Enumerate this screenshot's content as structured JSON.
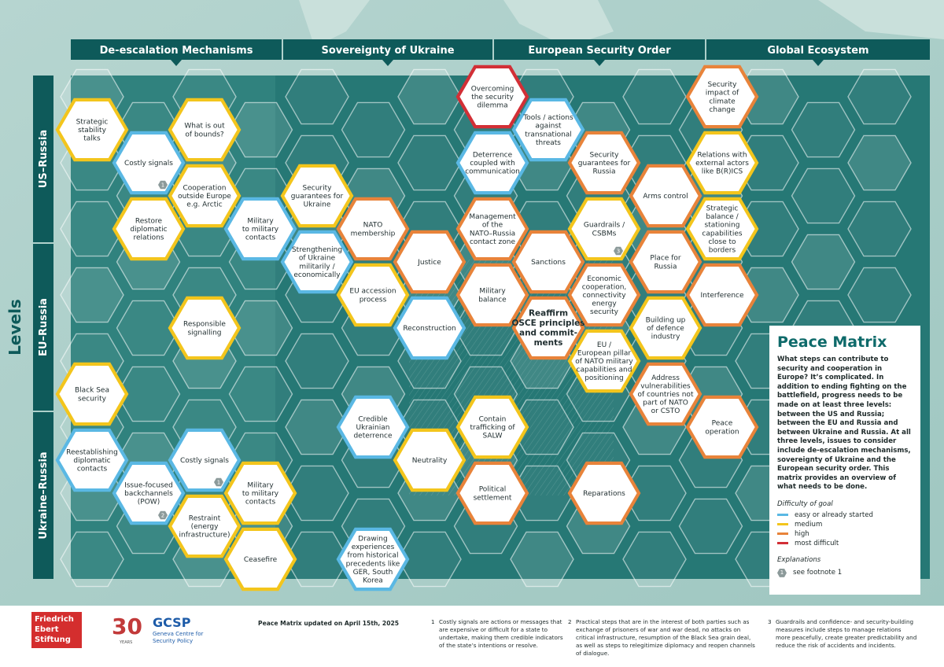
{
  "columns": [
    "De-escalation Mechanisms",
    "Sovereignty of Ukraine",
    "European Security Order",
    "Global Ecosystem"
  ],
  "levels_label": "Levels",
  "rows": [
    "US–Russia",
    "EU–Russia",
    "Ukraine–Russia"
  ],
  "difficulty_colors": {
    "easy": "#5ab8e4",
    "medium": "#f3c51c",
    "high": "#e8833a",
    "most_difficult": "#d22f36"
  },
  "hexes": [
    {
      "text": [
        "Strategic",
        "stability",
        "talks"
      ],
      "difficulty": "medium"
    },
    {
      "text": [
        "What is out",
        "of bounds?"
      ],
      "difficulty": "medium"
    },
    {
      "text": [
        "Costly signals"
      ],
      "difficulty": "easy",
      "footnote": "1"
    },
    {
      "text": [
        "Cooperation",
        "outside Europe",
        "e.g. Arctic"
      ],
      "difficulty": "medium"
    },
    {
      "text": [
        "Restore",
        "diplomatic",
        "relations"
      ],
      "difficulty": "medium"
    },
    {
      "text": [
        "Military",
        "to military",
        "contacts"
      ],
      "difficulty": "easy"
    },
    {
      "text": [
        "Responsible",
        "signalling"
      ],
      "difficulty": "medium"
    },
    {
      "text": [
        "Black Sea",
        "security"
      ],
      "difficulty": "medium"
    },
    {
      "text": [
        "Reestablishing",
        "diplomatic",
        "contacts"
      ],
      "difficulty": "easy"
    },
    {
      "text": [
        "Costly signals"
      ],
      "difficulty": "easy",
      "footnote": "1"
    },
    {
      "text": [
        "Issue-focused",
        "backchannels",
        "(POW)"
      ],
      "difficulty": "easy",
      "footnote": "2"
    },
    {
      "text": [
        "Military",
        "to military",
        "contacts"
      ],
      "difficulty": "medium"
    },
    {
      "text": [
        "Restraint",
        "(energy",
        "infrastructure)"
      ],
      "difficulty": "medium"
    },
    {
      "text": [
        "Ceasefire"
      ],
      "difficulty": "medium"
    },
    {
      "text": [
        "Security",
        "guarantees for",
        "Ukraine"
      ],
      "difficulty": "medium"
    },
    {
      "text": [
        "Strengthening",
        "of Ukraine",
        "militarily /",
        "economically"
      ],
      "difficulty": "easy"
    },
    {
      "text": [
        "NATO",
        "membership"
      ],
      "difficulty": "high"
    },
    {
      "text": [
        "EU accession",
        "process"
      ],
      "difficulty": "medium"
    },
    {
      "text": [
        "Justice"
      ],
      "difficulty": "high"
    },
    {
      "text": [
        "Reconstruction"
      ],
      "difficulty": "easy"
    },
    {
      "text": [
        "Credible",
        "Ukrainian",
        "deterrence"
      ],
      "difficulty": "easy"
    },
    {
      "text": [
        "Neutrality"
      ],
      "difficulty": "medium"
    },
    {
      "text": [
        "Drawing",
        "experiences",
        "from historical",
        "precedents like",
        "GER, South",
        "Korea"
      ],
      "difficulty": "easy"
    },
    {
      "text": [
        "Overcoming",
        "the security",
        "dilemma"
      ],
      "difficulty": "most_difficult"
    },
    {
      "text": [
        "Tools / actions",
        "against",
        "transnational",
        "threats"
      ],
      "difficulty": "easy"
    },
    {
      "text": [
        "Deterrence",
        "coupled with",
        "communication"
      ],
      "difficulty": "easy"
    },
    {
      "text": [
        "Management",
        "of the",
        "NATO–Russia",
        "contact zone"
      ],
      "difficulty": "high"
    },
    {
      "text": [
        "Sanctions"
      ],
      "difficulty": "high"
    },
    {
      "text": [
        "Military",
        "balance"
      ],
      "difficulty": "high"
    },
    {
      "text": [
        "Reaffirm",
        "OSCE principles",
        "and commit-",
        "ments"
      ],
      "difficulty": "high",
      "bold": true
    },
    {
      "text": [
        "Contain",
        "trafficking of",
        "SALW"
      ],
      "difficulty": "medium"
    },
    {
      "text": [
        "Political",
        "settlement"
      ],
      "difficulty": "high"
    },
    {
      "text": [
        "Security",
        "guarantees for",
        "Russia"
      ],
      "difficulty": "high"
    },
    {
      "text": [
        "Arms control"
      ],
      "difficulty": "high"
    },
    {
      "text": [
        "Guardrails /",
        "CSBMs"
      ],
      "difficulty": "medium",
      "footnote": "3"
    },
    {
      "text": [
        "Place for",
        "Russia"
      ],
      "difficulty": "high"
    },
    {
      "text": [
        "Economic",
        "cooperation,",
        "connectivity",
        "energy",
        "security"
      ],
      "difficulty": "high"
    },
    {
      "text": [
        "Building up",
        "of defence",
        "industry"
      ],
      "difficulty": "medium"
    },
    {
      "text": [
        "EU /",
        "European pillar",
        "of NATO military",
        "capabilities and",
        "positioning"
      ],
      "difficulty": "medium"
    },
    {
      "text": [
        "Address",
        "vulnerabilities",
        "of countries not",
        "part of NATO",
        "or CSTO"
      ],
      "difficulty": "high"
    },
    {
      "text": [
        "Reparations"
      ],
      "difficulty": "high"
    },
    {
      "text": [
        "Security",
        "impact of",
        "climate",
        "change"
      ],
      "difficulty": "high"
    },
    {
      "text": [
        "Relations with",
        "external actors",
        "like B(R)ICS"
      ],
      "difficulty": "medium"
    },
    {
      "text": [
        "Strategic",
        "balance /",
        "stationing",
        "capabilities",
        "close to",
        "borders"
      ],
      "difficulty": "medium"
    },
    {
      "text": [
        "Interference"
      ],
      "difficulty": "high"
    },
    {
      "text": [
        "Peace",
        "operation"
      ],
      "difficulty": "high"
    }
  ],
  "info": {
    "title": "Peace Matrix",
    "text": "What steps can contribute to security and cooperation in Europe? It’s complicated. In addition to ending fighting on the battlefield, progress needs to be made on at least three levels: between the US and Russia; between the EU and Russia and between Ukraine and Russia. At all three levels, issues to consider include de-escalation mechanisms, sovereignty of Ukraine and the European security order. This matrix provides an overview of what needs to be done.",
    "legend_title": "Difficulty of goal",
    "legend": [
      {
        "label": "easy or already started",
        "difficulty": "easy"
      },
      {
        "label": "medium",
        "difficulty": "medium"
      },
      {
        "label": "high",
        "difficulty": "high"
      },
      {
        "label": "most difficult",
        "difficulty": "most_difficult"
      }
    ],
    "explanations_title": "Explanations",
    "explanation_badge": "1",
    "explanation_text": "see footnote 1"
  },
  "footer": {
    "fes_logo": "Friedrich Ebert Stiftung",
    "gcsp_number": "30",
    "gcsp_years": "YEARS",
    "gcsp_name": "GCSP",
    "gcsp_sub": "Geneva Centre for Security Policy",
    "updated": "Peace Matrix updated on April 15th, 2025",
    "footnotes": [
      {
        "num": "1",
        "text": "Costly signals are actions or messages that are expensive or difficult for a state to undertake, making them credible indicators of the state’s intentions or resolve."
      },
      {
        "num": "2",
        "text": "Practical steps that are in the interest of both parties such as exchange of prisoners of war and war dead, no attacks on critical infrastructure, resumption of the Black Sea grain deal, as well as steps to relegitimize diplomacy and reopen channels of dialogue."
      },
      {
        "num": "3",
        "text": "Guardrails and confidence- and security-building measures include steps to manage relations more peacefully, create greater predictability and reduce the risk of accidents and incidents."
      }
    ]
  }
}
